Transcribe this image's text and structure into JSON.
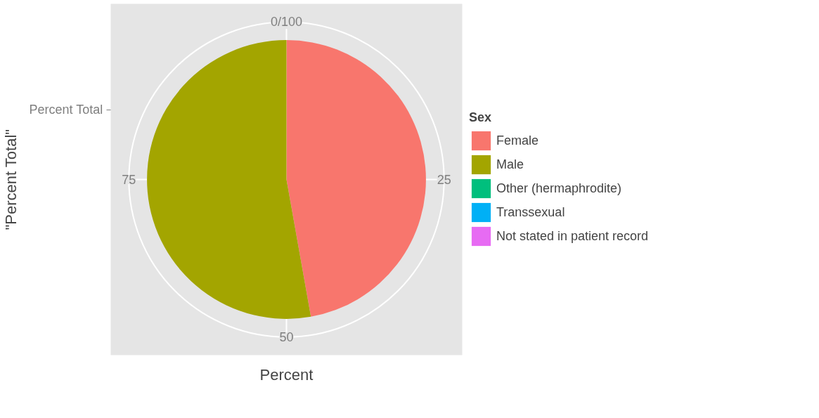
{
  "chart_data": {
    "type": "pie",
    "categories": [
      "Female",
      "Male",
      "Other (hermaphrodite)",
      "Transsexual",
      "Not stated in patient record"
    ],
    "values": [
      47.2,
      52.8,
      0,
      0,
      0
    ],
    "colors": [
      "#f8766d",
      "#a3a500",
      "#00bf7d",
      "#00b0f6",
      "#e76bf3"
    ],
    "xlabel": "Percent",
    "ylabel": "\"Percent Total\"",
    "legend_title": "Sex",
    "legend": "right",
    "annotations": [
      "Percent Total",
      "0/100",
      "25",
      "50",
      "75"
    ],
    "grid": true
  }
}
